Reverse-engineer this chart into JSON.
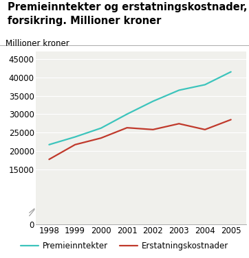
{
  "title": "Premieinntekter og erstatningskostnader, skade-\nforsikring. Millioner kroner",
  "ylabel": "Millioner kroner",
  "years": [
    1998,
    1999,
    2000,
    2001,
    2002,
    2003,
    2004,
    2005
  ],
  "premieinntekter": [
    21700,
    23800,
    26200,
    30000,
    33500,
    36500,
    38000,
    41500
  ],
  "erstatningskostnader": [
    17700,
    21700,
    23500,
    26300,
    25800,
    27400,
    25800,
    28500
  ],
  "line_color_prem": "#3CC4BC",
  "line_color_erst": "#C0392B",
  "yticks": [
    0,
    15000,
    20000,
    25000,
    30000,
    35000,
    40000,
    45000
  ],
  "ylim": [
    0,
    47000
  ],
  "xlim": [
    1997.5,
    2005.6
  ],
  "legend_prem": "Premieinntekter",
  "legend_erst": "Erstatningskostnader",
  "background_color": "#ffffff",
  "plot_bg_color": "#f0f0ec",
  "grid_color": "#ffffff",
  "title_fontsize": 10.5,
  "axis_fontsize": 8.5,
  "legend_fontsize": 8.5
}
